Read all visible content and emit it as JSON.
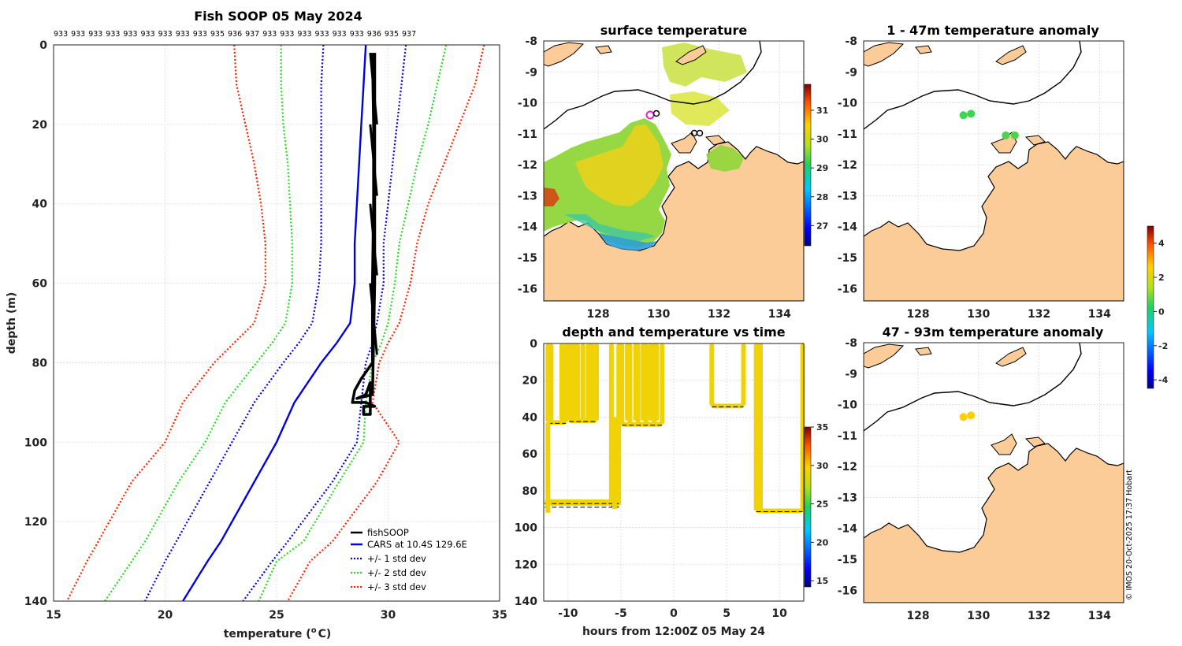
{
  "chart_data": [
    {
      "type": "line",
      "title": "Fish SOOP 05 May 2024",
      "top_labels": [
        "933",
        "933",
        "933",
        "933",
        "933",
        "933",
        "933",
        "933",
        "933",
        "935",
        "936",
        "937",
        "933",
        "933",
        "933",
        "933",
        "933",
        "933",
        "936",
        "935",
        "937"
      ],
      "xlabel": "temperature (",
      "xlabel_unit": "C)",
      "xlabel_sup": "o",
      "ylabel": "depth (m)",
      "xlim": [
        15,
        35
      ],
      "ylim": [
        0,
        140
      ],
      "xticks": [
        "15",
        "20",
        "25",
        "30",
        "35"
      ],
      "yticks": [
        "0",
        "20",
        "40",
        "60",
        "80",
        "100",
        "120",
        "140"
      ],
      "legend": [
        "fishSOOP",
        "CARS at 10.4S 129.6E",
        "+/- 1 std dev",
        "+/- 2 std dev",
        "+/- 3 std dev"
      ],
      "depths": [
        0,
        10,
        20,
        30,
        40,
        50,
        60,
        70,
        75,
        80,
        90,
        100,
        110,
        125,
        130,
        140
      ],
      "cars_mean": [
        29.0,
        28.9,
        28.8,
        28.7,
        28.6,
        28.5,
        28.5,
        28.3,
        27.7,
        27.0,
        25.8,
        25.0,
        24.0,
        22.5,
        21.9,
        20.8
      ],
      "cars_p1": [
        30.8,
        30.6,
        30.4,
        30.2,
        30.0,
        29.8,
        29.8,
        29.5,
        29.3,
        29.0,
        28.8,
        28.6,
        27.5,
        25.5,
        24.8,
        23.5
      ],
      "cars_m1": [
        27.1,
        27.0,
        27.0,
        27.0,
        27.0,
        27.0,
        26.9,
        26.6,
        26.0,
        25.3,
        24.0,
        23.0,
        22.0,
        20.5,
        20.0,
        19.1
      ],
      "cars_p2": [
        32.6,
        32.2,
        31.8,
        31.3,
        30.9,
        30.5,
        30.3,
        30.0,
        29.7,
        29.3,
        29.0,
        28.9,
        27.8,
        26.2,
        25.0,
        24.2
      ],
      "cars_m2": [
        25.2,
        25.2,
        25.3,
        25.5,
        25.6,
        25.7,
        25.7,
        25.4,
        24.8,
        24.1,
        22.7,
        21.8,
        20.6,
        19.1,
        18.5,
        17.3
      ],
      "cars_p3": [
        34.3,
        33.9,
        33.2,
        32.5,
        31.8,
        31.3,
        31.0,
        30.5,
        30.0,
        29.6,
        29.3,
        30.5,
        29.5,
        27.5,
        26.5,
        25.5
      ],
      "cars_m3": [
        23.1,
        23.2,
        23.6,
        24.0,
        24.3,
        24.5,
        24.5,
        24.0,
        23.1,
        22.2,
        20.8,
        20.0,
        18.5,
        17.0,
        16.5,
        15.6
      ],
      "fish_profile": [
        [
          29.3,
          2
        ],
        [
          29.35,
          20
        ],
        [
          29.35,
          40
        ],
        [
          29.3,
          60
        ],
        [
          29.3,
          80
        ],
        [
          28.8,
          84
        ],
        [
          28.5,
          87
        ],
        [
          28.4,
          90
        ],
        [
          29.0,
          90
        ],
        [
          29.4,
          91
        ],
        [
          28.9,
          91
        ],
        [
          28.9,
          93
        ],
        [
          29.2,
          93
        ],
        [
          29.2,
          85
        ],
        [
          29.0,
          88
        ],
        [
          28.6,
          89
        ],
        [
          29.3,
          88
        ],
        [
          29.4,
          60
        ],
        [
          29.4,
          20
        ],
        [
          29.4,
          2
        ]
      ]
    },
    {
      "type": "heatmap",
      "title": "surface temperature",
      "xticks": [
        "128",
        "130",
        "132",
        "134"
      ],
      "yticks": [
        "-8",
        "-9",
        "-10",
        "-11",
        "-12",
        "-13",
        "-14",
        "-15",
        "-16"
      ],
      "xlim": [
        126.2,
        134.8
      ],
      "ylim": [
        -16.4,
        -8
      ],
      "colorbar_range": [
        26.3,
        31.9
      ],
      "colorbar_ticks": [
        "27",
        "28",
        "29",
        "30",
        "31"
      ],
      "profile_locations": [
        [
          129.6,
          -10.4
        ],
        [
          129.85,
          -10.35
        ],
        [
          131.0,
          -11.05
        ],
        [
          131.2,
          -11.05
        ]
      ]
    },
    {
      "type": "scatter",
      "title": "depth and temperature vs time",
      "xlabel": "hours from 12:00Z 05 May 24",
      "xlim": [
        -12.3,
        12.3
      ],
      "ylim": [
        0,
        140
      ],
      "xticks": [
        "-10",
        "-5",
        "0",
        "5",
        "10"
      ],
      "yticks": [
        "0",
        "20",
        "40",
        "60",
        "80",
        "100",
        "120",
        "140"
      ],
      "colorbar_range": [
        14.2,
        35
      ],
      "colorbar_ticks": [
        "15",
        "20",
        "25",
        "30",
        "35"
      ],
      "color_value": 29.3,
      "sessions": [
        {
          "start": -11.9,
          "end": -10.2,
          "floor": 43,
          "casts": 2,
          "deep": true
        },
        {
          "start": -9.9,
          "end": -7.3,
          "floor": 42,
          "casts": 5,
          "deep": false
        },
        {
          "start": -5.9,
          "end": -5.2,
          "floor": 88,
          "casts": 2,
          "deep": true
        },
        {
          "start": -4.9,
          "end": -1.1,
          "floor": 44,
          "casts": 6,
          "deep": false
        },
        {
          "start": 3.6,
          "end": 6.6,
          "floor": 34,
          "casts": 2,
          "deep": false
        },
        {
          "start": 7.8,
          "end": 12.2,
          "floor": 91,
          "casts": 2,
          "deep": false
        }
      ]
    },
    {
      "type": "scatter",
      "title": "1 - 47m temperature anomaly",
      "xticks": [
        "128",
        "130",
        "132",
        "134"
      ],
      "yticks": [
        "-8",
        "-9",
        "-10",
        "-11",
        "-12",
        "-13",
        "-14",
        "-15",
        "-16"
      ],
      "xlim": [
        126.2,
        134.8
      ],
      "ylim": [
        -16.4,
        -8
      ],
      "points": [
        [
          129.5,
          -10.4,
          0.5
        ],
        [
          129.75,
          -10.35,
          0.5
        ],
        [
          130.9,
          -11.05,
          0.6
        ],
        [
          131.2,
          -11.05,
          0.6
        ]
      ]
    },
    {
      "type": "scatter",
      "title": "47 - 93m temperature anomaly",
      "xticks": [
        "128",
        "130",
        "132",
        "134"
      ],
      "yticks": [
        "-8",
        "-9",
        "-10",
        "-11",
        "-12",
        "-13",
        "-14",
        "-15",
        "-16"
      ],
      "xlim": [
        126.2,
        134.8
      ],
      "ylim": [
        -16.4,
        -8
      ],
      "points": [
        [
          129.5,
          -10.4,
          2.6
        ],
        [
          129.75,
          -10.35,
          2.6
        ]
      ],
      "colorbar_range": [
        -4.5,
        5
      ],
      "colorbar_ticks": [
        "4",
        "2",
        "0",
        "-2",
        "-4"
      ]
    }
  ],
  "credit": "© IMOS 20-Oct-2025 17:37 Hobart"
}
